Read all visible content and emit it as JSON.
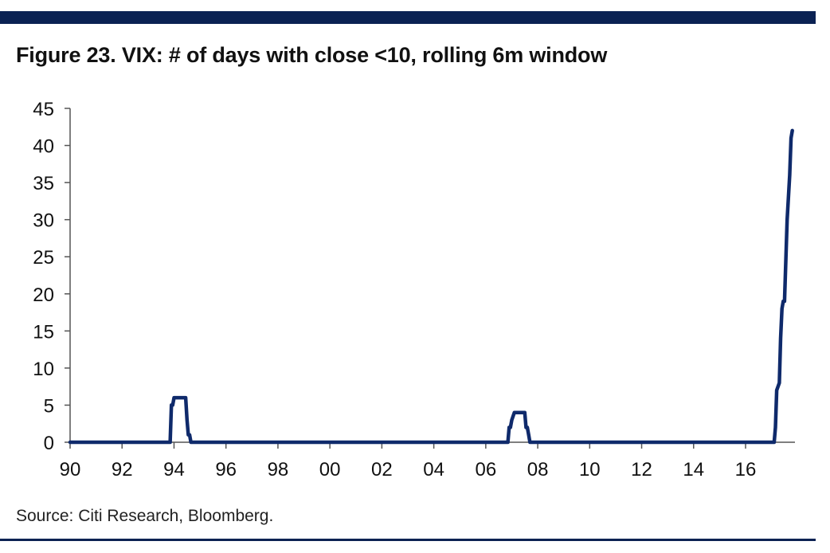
{
  "title": "Figure 23. VIX: # of days with close <10, rolling 6m window",
  "source": "Source: Citi Research, Bloomberg.",
  "colors": {
    "rule": "#0b2253",
    "line": "#0f2a6b",
    "axis": "#555555"
  },
  "chart_data": {
    "type": "line",
    "title": "Figure 23. VIX: # of days with close <10, rolling 6m window",
    "xlabel": "",
    "ylabel": "",
    "xlim": [
      1990,
      2017.85
    ],
    "ylim": [
      0,
      45
    ],
    "x_ticks": [
      1990,
      1992,
      1994,
      1996,
      1998,
      2000,
      2002,
      2004,
      2006,
      2008,
      2010,
      2012,
      2014,
      2016
    ],
    "x_tick_labels": [
      "90",
      "92",
      "94",
      "96",
      "98",
      "00",
      "02",
      "04",
      "06",
      "08",
      "10",
      "12",
      "14",
      "16"
    ],
    "y_ticks": [
      0,
      5,
      10,
      15,
      20,
      25,
      30,
      35,
      40,
      45
    ],
    "y_tick_labels": [
      "0",
      "5",
      "10",
      "15",
      "20",
      "25",
      "30",
      "35",
      "40",
      "45"
    ],
    "grid": false,
    "legend": "none",
    "series": [
      {
        "x": [
          1990,
          1993.85,
          1993.9,
          1993.95,
          1994.0,
          1994.1,
          1994.2,
          1994.35,
          1994.45,
          1994.5,
          1994.55,
          1994.6,
          1994.65,
          1994.7,
          2006.85,
          2006.9,
          2006.95,
          2007.0,
          2007.1,
          2007.2,
          2007.3,
          2007.5,
          2007.55,
          2007.6,
          2007.65,
          2007.7,
          2007.75,
          2017.1,
          2017.15,
          2017.2,
          2017.3,
          2017.35,
          2017.4,
          2017.45,
          2017.5,
          2017.6,
          2017.7,
          2017.75,
          2017.8
        ],
        "y": [
          0,
          0,
          5,
          5,
          6,
          6,
          6,
          6,
          6,
          3,
          1,
          1,
          0,
          0,
          0,
          2,
          2,
          3,
          4,
          4,
          4,
          4,
          2,
          2,
          1,
          0,
          0,
          0,
          2,
          7,
          8,
          14,
          18,
          19,
          19,
          30,
          36,
          41,
          42
        ]
      }
    ]
  }
}
